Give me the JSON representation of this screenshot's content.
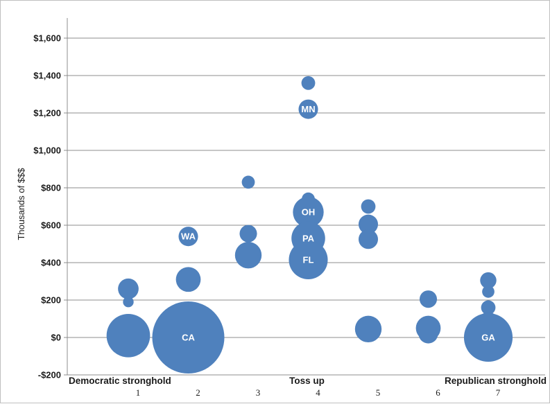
{
  "chart_data": {
    "type": "bubble",
    "title": "",
    "ylabel": "Thousands of $$$",
    "xlabel": "",
    "ylim": [
      -200,
      1700
    ],
    "xlim": [
      0,
      8
    ],
    "grid": {
      "horizontal": true,
      "vertical": false
    },
    "y_ticks": [
      {
        "value": -200,
        "label": "-$200"
      },
      {
        "value": 0,
        "label": "$0"
      },
      {
        "value": 200,
        "label": "$200"
      },
      {
        "value": 400,
        "label": "$400"
      },
      {
        "value": 600,
        "label": "$600"
      },
      {
        "value": 800,
        "label": "$800"
      },
      {
        "value": 1000,
        "label": "$1,000"
      },
      {
        "value": 1200,
        "label": "$1,200"
      },
      {
        "value": 1400,
        "label": "$1,400"
      },
      {
        "value": 1600,
        "label": "$1,600"
      }
    ],
    "x_ticks": [
      {
        "value": 1,
        "label": "1"
      },
      {
        "value": 2,
        "label": "2"
      },
      {
        "value": 3,
        "label": "3"
      },
      {
        "value": 4,
        "label": "4"
      },
      {
        "value": 5,
        "label": "5"
      },
      {
        "value": 6,
        "label": "6"
      },
      {
        "value": 7,
        "label": "7"
      }
    ],
    "x_category_labels": [
      {
        "text": "Democratic stronghold",
        "anchor": 1,
        "align": "left"
      },
      {
        "text": "Toss up",
        "anchor": 4,
        "align": "middle"
      },
      {
        "text": "Republican stronghold",
        "anchor": 7,
        "align": "right"
      }
    ],
    "bubble_color": "#4f81bd",
    "points": [
      {
        "x": 1,
        "y": 260,
        "size": 4.5,
        "label": ""
      },
      {
        "x": 1,
        "y": 190,
        "size": 1.2,
        "label": ""
      },
      {
        "x": 1,
        "y": 10,
        "size": 20,
        "label": ""
      },
      {
        "x": 2,
        "y": 540,
        "size": 4,
        "label": "WA"
      },
      {
        "x": 2,
        "y": 310,
        "size": 6.5,
        "label": ""
      },
      {
        "x": 2,
        "y": 0,
        "size": 55,
        "label": "CA"
      },
      {
        "x": 3,
        "y": 830,
        "size": 1.8,
        "label": ""
      },
      {
        "x": 3,
        "y": 555,
        "size": 3.2,
        "label": ""
      },
      {
        "x": 3,
        "y": 440,
        "size": 7.5,
        "label": ""
      },
      {
        "x": 4,
        "y": 1360,
        "size": 2,
        "label": ""
      },
      {
        "x": 4,
        "y": 1220,
        "size": 4,
        "label": "MN"
      },
      {
        "x": 4,
        "y": 740,
        "size": 1.8,
        "label": ""
      },
      {
        "x": 4,
        "y": 670,
        "size": 10,
        "label": "OH"
      },
      {
        "x": 4,
        "y": 530,
        "size": 12,
        "label": "PA"
      },
      {
        "x": 4,
        "y": 415,
        "size": 16,
        "label": "FL"
      },
      {
        "x": 5,
        "y": 700,
        "size": 2.2,
        "label": ""
      },
      {
        "x": 5,
        "y": 605,
        "size": 4,
        "label": ""
      },
      {
        "x": 5,
        "y": 525,
        "size": 4,
        "label": ""
      },
      {
        "x": 5,
        "y": 45,
        "size": 7.5,
        "label": ""
      },
      {
        "x": 6,
        "y": 205,
        "size": 3.2,
        "label": ""
      },
      {
        "x": 6,
        "y": 50,
        "size": 6.5,
        "label": ""
      },
      {
        "x": 6,
        "y": 20,
        "size": 4,
        "label": ""
      },
      {
        "x": 7,
        "y": 305,
        "size": 2.8,
        "label": ""
      },
      {
        "x": 7,
        "y": 245,
        "size": 1.6,
        "label": ""
      },
      {
        "x": 7,
        "y": 160,
        "size": 2.2,
        "label": ""
      },
      {
        "x": 7,
        "y": 80,
        "size": 4.5,
        "label": ""
      },
      {
        "x": 7,
        "y": 0,
        "size": 25,
        "label": "GA"
      }
    ]
  }
}
